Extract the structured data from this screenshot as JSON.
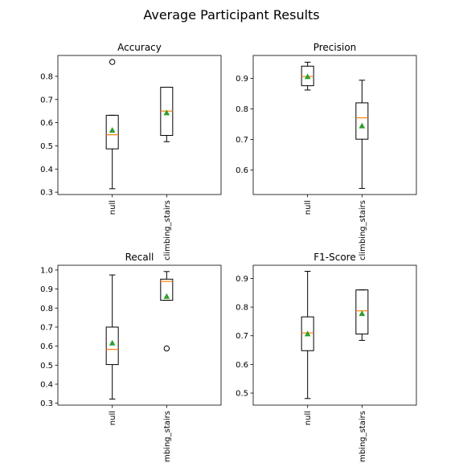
{
  "figure": {
    "suptitle": "Average Participant Results"
  },
  "colors": {
    "median": "#ff7f0e",
    "mean": "#2ca02c",
    "box": "#000000",
    "background": "#ffffff"
  },
  "chart_data": [
    {
      "type": "box",
      "title": "Accuracy",
      "categories": [
        "null",
        "climbing_stairs"
      ],
      "yticks": [
        0.3,
        0.4,
        0.5,
        0.6,
        0.7,
        0.8
      ],
      "ylim": [
        0.29,
        0.89
      ],
      "boxes": [
        {
          "name": "null",
          "whisker_low": 0.315,
          "q1": 0.487,
          "median": 0.548,
          "q3": 0.632,
          "whisker_high": 0.632,
          "mean": 0.568,
          "outliers": [
            0.862
          ]
        },
        {
          "name": "climbing_stairs",
          "whisker_low": 0.518,
          "q1": 0.545,
          "median": 0.65,
          "q3": 0.753,
          "whisker_high": 0.753,
          "mean": 0.643,
          "outliers": []
        }
      ]
    },
    {
      "type": "box",
      "title": "Precision",
      "categories": [
        "null",
        "climbing_stairs"
      ],
      "yticks": [
        0.6,
        0.7,
        0.8,
        0.9
      ],
      "ylim": [
        0.52,
        0.975
      ],
      "boxes": [
        {
          "name": "null",
          "whisker_low": 0.862,
          "q1": 0.876,
          "median": 0.906,
          "q3": 0.94,
          "whisker_high": 0.953,
          "mean": 0.906,
          "outliers": []
        },
        {
          "name": "climbing_stairs",
          "whisker_low": 0.54,
          "q1": 0.701,
          "median": 0.771,
          "q3": 0.82,
          "whisker_high": 0.894,
          "mean": 0.745,
          "outliers": []
        }
      ]
    },
    {
      "type": "box",
      "title": "Recall",
      "categories": [
        "null",
        "climbing_stairs"
      ],
      "yticks": [
        0.3,
        0.4,
        0.5,
        0.6,
        0.7,
        0.8,
        0.9,
        1.0
      ],
      "ylim": [
        0.29,
        1.025
      ],
      "boxes": [
        {
          "name": "null",
          "whisker_low": 0.322,
          "q1": 0.503,
          "median": 0.583,
          "q3": 0.7,
          "whisker_high": 0.974,
          "mean": 0.617,
          "outliers": []
        },
        {
          "name": "climbing_stairs",
          "whisker_low": 0.841,
          "q1": 0.841,
          "median": 0.94,
          "q3": 0.952,
          "whisker_high": 0.992,
          "mean": 0.862,
          "outliers": [
            0.588
          ]
        }
      ]
    },
    {
      "type": "box",
      "title": "F1-Score",
      "categories": [
        "null",
        "climbing_stairs"
      ],
      "yticks": [
        0.5,
        0.6,
        0.7,
        0.8,
        0.9
      ],
      "ylim": [
        0.458,
        0.946
      ],
      "boxes": [
        {
          "name": "null",
          "whisker_low": 0.481,
          "q1": 0.648,
          "median": 0.71,
          "q3": 0.766,
          "whisker_high": 0.925,
          "mean": 0.707,
          "outliers": []
        },
        {
          "name": "climbing_stairs",
          "whisker_low": 0.684,
          "q1": 0.706,
          "median": 0.787,
          "q3": 0.86,
          "whisker_high": 0.86,
          "mean": 0.778,
          "outliers": []
        }
      ]
    }
  ]
}
